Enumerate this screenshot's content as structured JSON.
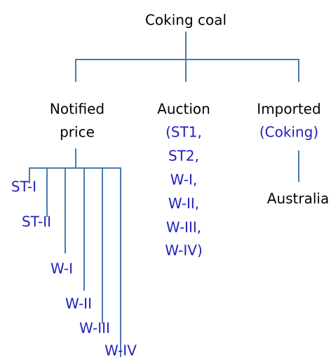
{
  "root": "Coking coal",
  "branches": [
    {
      "label": [
        "Notified",
        "price"
      ],
      "children": [
        "ST-I",
        "ST-II",
        "W-I",
        "W-II",
        "W-III",
        "W-IV"
      ]
    },
    {
      "label": [
        "Auction"
      ],
      "details": [
        "(ST1,",
        "ST2,",
        "W-I,",
        "W-II,",
        "W-III,",
        "W-IV)"
      ]
    },
    {
      "label": [
        "Imported"
      ],
      "details": [
        "(Coking)"
      ],
      "children": [
        "Australia"
      ]
    }
  ]
}
